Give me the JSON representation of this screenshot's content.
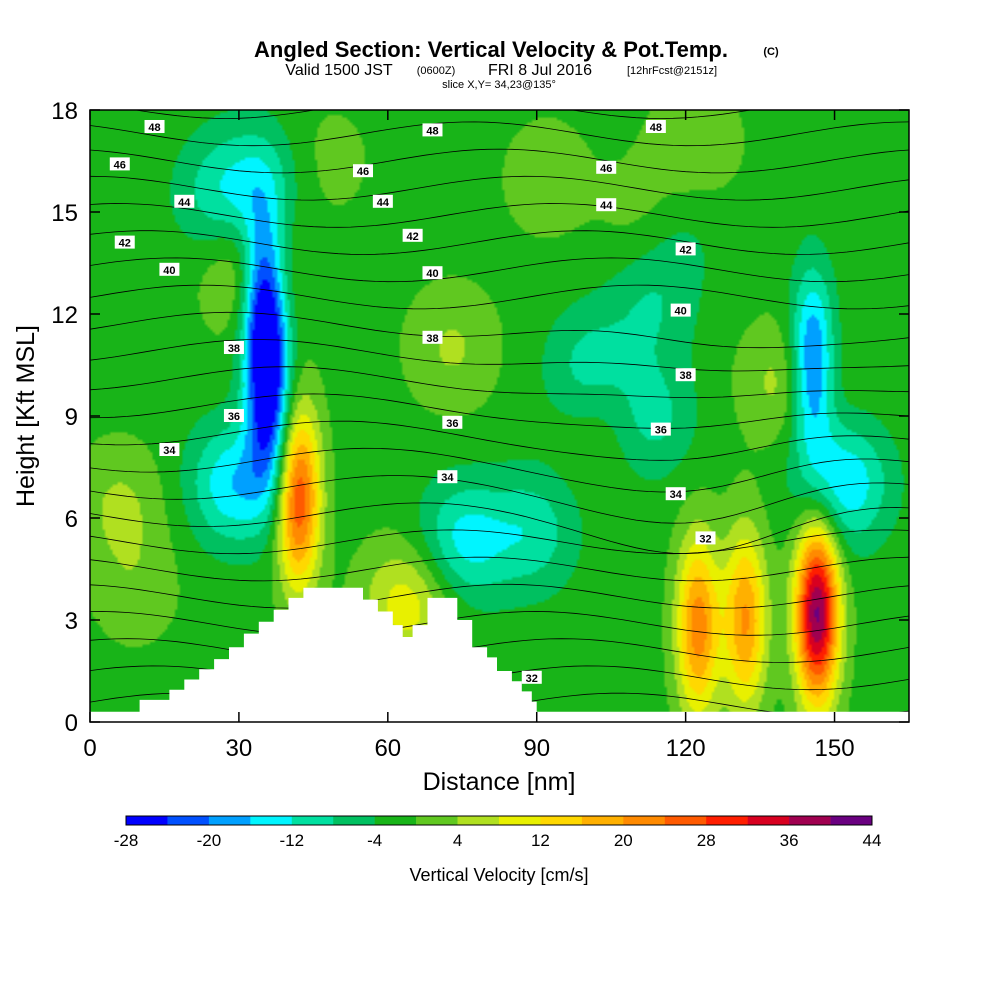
{
  "header": {
    "title": "Angled Section: Vertical Velocity & Pot.Temp.",
    "title_tag": "(C)",
    "valid_prefix": "Valid 1500 JST",
    "valid_utc": "(0600Z)",
    "valid_date": "FRI 8 Jul 2016",
    "forecast": "[12hrFcst@2151z]",
    "slice": "slice X,Y= 34,23@135°"
  },
  "chart_data": {
    "type": "heatmap",
    "xlabel": "Distance [nm]",
    "ylabel": "Height [Kft MSL]",
    "xlim": [
      0,
      165
    ],
    "ylim": [
      0,
      18
    ],
    "xticks": [
      "0",
      "30",
      "60",
      "90",
      "120",
      "150"
    ],
    "yticks": [
      "0",
      "3",
      "6",
      "9",
      "12",
      "15",
      "18"
    ],
    "colorbar": {
      "title": "Vertical Velocity [cm/s]",
      "labels": [
        "-28",
        "-20",
        "-12",
        "-4",
        "4",
        "12",
        "20",
        "28",
        "36",
        "44"
      ],
      "levels": [
        -28,
        -24,
        -20,
        -16,
        -12,
        -8,
        -4,
        0,
        4,
        8,
        12,
        16,
        20,
        24,
        28,
        32,
        36,
        40,
        44
      ],
      "colors": [
        "#0000ff",
        "#0050ff",
        "#00a0ff",
        "#00f5ff",
        "#00e0a0",
        "#00c060",
        "#18b418",
        "#60c820",
        "#b0e020",
        "#e8f000",
        "#ffd800",
        "#ffb000",
        "#ff8a00",
        "#ff5a00",
        "#ff1e00",
        "#d80020",
        "#a00050",
        "#6a0080"
      ]
    },
    "vertical_velocity_features": [
      {
        "x": 42,
        "y": 6.6,
        "peak": 30
      },
      {
        "x": 122.5,
        "y": 2.8,
        "peak": 24
      },
      {
        "x": 132,
        "y": 3.0,
        "peak": 22
      },
      {
        "x": 146.5,
        "y": 3.2,
        "peak": 42
      },
      {
        "x": 35,
        "y": 12.5,
        "peak": -26
      },
      {
        "x": 36,
        "y": 9.5,
        "peak": -24
      },
      {
        "x": 29,
        "y": 7.0,
        "peak": -14
      },
      {
        "x": 145.5,
        "y": 10.5,
        "peak": -22
      },
      {
        "x": 152,
        "y": 7.0,
        "peak": -14
      },
      {
        "x": 75,
        "y": 5.3,
        "peak": -12
      },
      {
        "x": 89,
        "y": 5.6,
        "peak": -9
      },
      {
        "x": 101,
        "y": 10.3,
        "peak": -10
      },
      {
        "x": 113,
        "y": 12.3,
        "peak": -6
      },
      {
        "x": 112,
        "y": 9.0,
        "peak": -10
      },
      {
        "x": 117,
        "y": 14.5,
        "peak": -6
      },
      {
        "x": 26,
        "y": 15.5,
        "peak": -8
      },
      {
        "x": 34,
        "y": 16.0,
        "peak": -7
      },
      {
        "x": 105,
        "y": 9.2,
        "peak": 7
      },
      {
        "x": 140,
        "y": 10.0,
        "peak": 7
      },
      {
        "x": 73,
        "y": 11.0,
        "peak": 6
      },
      {
        "x": 64,
        "y": 3.5,
        "peak": 12
      },
      {
        "x": 32,
        "y": 13.2,
        "peak": 8
      },
      {
        "x": 122,
        "y": 17.0,
        "peak": 5
      },
      {
        "x": 113,
        "y": 14.8,
        "peak": 6
      },
      {
        "x": 6,
        "y": 6.4,
        "peak": 6
      },
      {
        "x": 9,
        "y": 4.0,
        "peak": 4
      },
      {
        "x": 92,
        "y": 16.0,
        "peak": 4
      },
      {
        "x": 48,
        "y": 16.5,
        "peak": 3
      }
    ],
    "terrain_kft": [
      [
        0,
        0.3
      ],
      [
        10,
        0.3
      ],
      [
        10,
        0.65
      ],
      [
        16,
        0.65
      ],
      [
        16,
        0.95
      ],
      [
        19,
        0.95
      ],
      [
        19,
        1.25
      ],
      [
        22,
        1.25
      ],
      [
        22,
        1.55
      ],
      [
        25,
        1.55
      ],
      [
        25,
        1.85
      ],
      [
        28,
        1.85
      ],
      [
        28,
        2.2
      ],
      [
        31,
        2.2
      ],
      [
        31,
        2.6
      ],
      [
        34,
        2.6
      ],
      [
        34,
        2.95
      ],
      [
        37,
        2.95
      ],
      [
        37,
        3.3
      ],
      [
        40,
        3.3
      ],
      [
        40,
        3.65
      ],
      [
        43,
        3.65
      ],
      [
        43,
        3.95
      ],
      [
        55,
        3.95
      ],
      [
        55,
        3.6
      ],
      [
        58,
        3.6
      ],
      [
        58,
        3.25
      ],
      [
        61,
        3.25
      ],
      [
        61,
        2.85
      ],
      [
        63,
        2.85
      ],
      [
        63,
        2.5
      ],
      [
        65,
        2.5
      ],
      [
        65,
        2.85
      ],
      [
        68,
        2.85
      ],
      [
        68,
        3.65
      ],
      [
        74,
        3.65
      ],
      [
        74,
        3.0
      ],
      [
        77,
        3.0
      ],
      [
        77,
        2.2
      ],
      [
        80,
        2.2
      ],
      [
        80,
        1.9
      ],
      [
        82,
        1.9
      ],
      [
        82,
        1.5
      ],
      [
        85,
        1.5
      ],
      [
        85,
        1.2
      ],
      [
        87,
        1.2
      ],
      [
        87,
        0.9
      ],
      [
        89,
        0.9
      ],
      [
        89,
        0.6
      ],
      [
        90,
        0.6
      ],
      [
        90,
        0.3
      ],
      [
        165,
        0.3
      ]
    ],
    "isentrope_labels": [
      {
        "text": "48",
        "x": 13,
        "y": 17.5
      },
      {
        "text": "48",
        "x": 69,
        "y": 17.4
      },
      {
        "text": "48",
        "x": 114,
        "y": 17.5
      },
      {
        "text": "46",
        "x": 6,
        "y": 16.4
      },
      {
        "text": "46",
        "x": 55,
        "y": 16.2
      },
      {
        "text": "46",
        "x": 104,
        "y": 16.3
      },
      {
        "text": "44",
        "x": 19,
        "y": 15.3
      },
      {
        "text": "44",
        "x": 59,
        "y": 15.3
      },
      {
        "text": "44",
        "x": 104,
        "y": 15.2
      },
      {
        "text": "42",
        "x": 7,
        "y": 14.1
      },
      {
        "text": "42",
        "x": 65,
        "y": 14.3
      },
      {
        "text": "42",
        "x": 120,
        "y": 13.9
      },
      {
        "text": "40",
        "x": 16,
        "y": 13.3
      },
      {
        "text": "40",
        "x": 69,
        "y": 13.2
      },
      {
        "text": "40",
        "x": 119,
        "y": 12.1
      },
      {
        "text": "38",
        "x": 29,
        "y": 11.0
      },
      {
        "text": "38",
        "x": 69,
        "y": 11.3
      },
      {
        "text": "38",
        "x": 120,
        "y": 10.2
      },
      {
        "text": "36",
        "x": 29,
        "y": 9.0
      },
      {
        "text": "36",
        "x": 73,
        "y": 8.8
      },
      {
        "text": "36",
        "x": 115,
        "y": 8.6
      },
      {
        "text": "34",
        "x": 16,
        "y": 8.0
      },
      {
        "text": "34",
        "x": 72,
        "y": 7.2
      },
      {
        "text": "34",
        "x": 118,
        "y": 6.7
      },
      {
        "text": "32",
        "x": 124,
        "y": 5.4
      },
      {
        "text": "32",
        "x": 89,
        "y": 1.3
      }
    ]
  }
}
